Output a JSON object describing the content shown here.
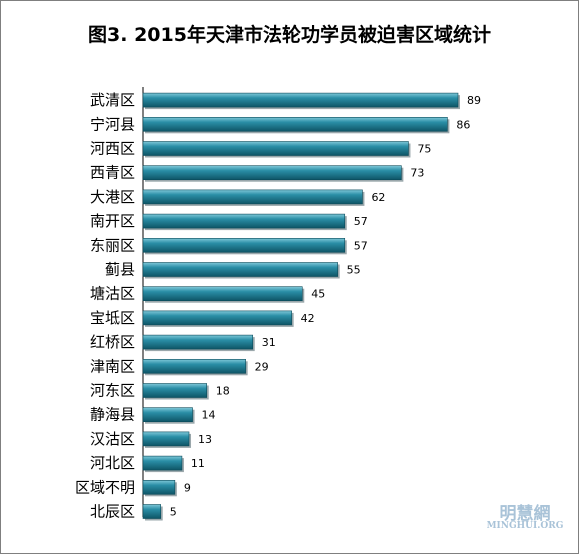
{
  "chart_data": {
    "type": "bar",
    "orientation": "horizontal",
    "title": "图3. 2015年天津市法轮功学员被迫害区域统计",
    "categories": [
      "武清区",
      "宁河县",
      "河西区",
      "西青区",
      "大港区",
      "南开区",
      "东丽区",
      "蓟县",
      "塘沽区",
      "宝坻区",
      "红桥区",
      "津南区",
      "河东区",
      "静海县",
      "汉沽区",
      "河北区",
      "区域不明",
      "北辰区"
    ],
    "values": [
      89,
      86,
      75,
      73,
      62,
      57,
      57,
      55,
      45,
      42,
      31,
      29,
      18,
      14,
      13,
      11,
      9,
      5
    ],
    "xlim": [
      0,
      89
    ],
    "grid": false,
    "legend": "none",
    "bar_color": "#1f7f96",
    "data_labels": true
  },
  "logo": {
    "cn": "明慧網",
    "en": "MINGHUI.ORG"
  }
}
